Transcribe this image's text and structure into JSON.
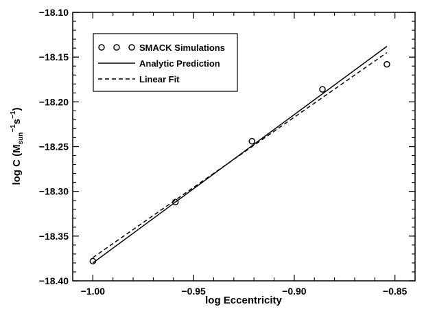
{
  "chart_data": {
    "type": "scatter",
    "xlabel": "log Eccentricity",
    "ylabel": {
      "base": "log C (M",
      "sub": "sun",
      "sup1": "−1",
      "mid": "s",
      "sup2": "−1",
      "end": ")"
    },
    "xlim": [
      -1.01,
      -0.84
    ],
    "ylim": [
      -18.4,
      -18.1
    ],
    "x_ticks": [
      {
        "value": -1.0,
        "label": "−1.00"
      },
      {
        "value": -0.95,
        "label": "−0.95"
      },
      {
        "value": -0.9,
        "label": "−0.90"
      },
      {
        "value": -0.85,
        "label": "−0.85"
      }
    ],
    "y_ticks": [
      {
        "value": -18.1,
        "label": "−18.10"
      },
      {
        "value": -18.15,
        "label": "−18.15"
      },
      {
        "value": -18.2,
        "label": "−18.20"
      },
      {
        "value": -18.25,
        "label": "−18.25"
      },
      {
        "value": -18.3,
        "label": "−18.30"
      },
      {
        "value": -18.35,
        "label": "−18.35"
      },
      {
        "value": -18.4,
        "label": "−18.40"
      }
    ],
    "x_minor_step": 0.01,
    "y_minor_step": 0.01,
    "grid": false,
    "legend_position": "top-left",
    "series": [
      {
        "name": "SMACK Simulations",
        "style": "markers",
        "marker": "open-circle",
        "points": [
          {
            "x": -1.0,
            "y": -18.378
          },
          {
            "x": -0.959,
            "y": -18.312
          },
          {
            "x": -0.921,
            "y": -18.244
          },
          {
            "x": -0.886,
            "y": -18.186
          },
          {
            "x": -0.854,
            "y": -18.158
          }
        ]
      },
      {
        "name": "Analytic Prediction",
        "style": "solid",
        "points": [
          {
            "x": -1.0,
            "y": -18.38
          },
          {
            "x": -0.854,
            "y": -18.138
          }
        ]
      },
      {
        "name": "Linear Fit",
        "style": "dashed",
        "points": [
          {
            "x": -1.0,
            "y": -18.374
          },
          {
            "x": -0.854,
            "y": -18.145
          }
        ]
      }
    ],
    "colors": {
      "ink": "#000000",
      "background": "#ffffff"
    }
  }
}
